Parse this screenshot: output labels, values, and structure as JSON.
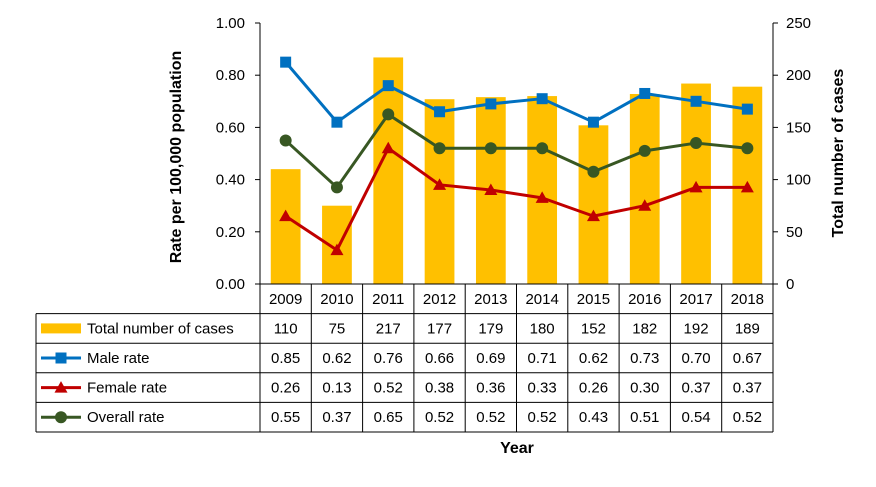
{
  "chart_data": {
    "type": "bar",
    "categories": [
      "2009",
      "2010",
      "2011",
      "2012",
      "2013",
      "2014",
      "2015",
      "2016",
      "2017",
      "2018"
    ],
    "series": [
      {
        "name": "Total number of cases",
        "kind": "bar",
        "axis": "right",
        "color": "#FFC000",
        "values": [
          110,
          75,
          217,
          177,
          179,
          180,
          152,
          182,
          192,
          189
        ],
        "labels": [
          "110",
          "75",
          "217",
          "177",
          "179",
          "180",
          "152",
          "182",
          "192",
          "189"
        ]
      },
      {
        "name": "Male rate",
        "kind": "line",
        "axis": "left",
        "color": "#0070C0",
        "marker": "square",
        "values": [
          0.85,
          0.62,
          0.76,
          0.66,
          0.69,
          0.71,
          0.62,
          0.73,
          0.7,
          0.67
        ],
        "labels": [
          "0.85",
          "0.62",
          "0.76",
          "0.66",
          "0.69",
          "0.71",
          "0.62",
          "0.73",
          "0.70",
          "0.67"
        ]
      },
      {
        "name": "Female rate",
        "kind": "line",
        "axis": "left",
        "color": "#C00000",
        "marker": "triangle",
        "values": [
          0.26,
          0.13,
          0.52,
          0.38,
          0.36,
          0.33,
          0.26,
          0.3,
          0.37,
          0.37
        ],
        "labels": [
          "0.26",
          "0.13",
          "0.52",
          "0.38",
          "0.36",
          "0.33",
          "0.26",
          "0.30",
          "0.37",
          "0.37"
        ]
      },
      {
        "name": "Overall rate",
        "kind": "line",
        "axis": "left",
        "color": "#385723",
        "marker": "circle",
        "values": [
          0.55,
          0.37,
          0.65,
          0.52,
          0.52,
          0.52,
          0.43,
          0.51,
          0.54,
          0.52
        ],
        "labels": [
          "0.55",
          "0.37",
          "0.65",
          "0.52",
          "0.52",
          "0.52",
          "0.43",
          "0.51",
          "0.54",
          "0.52"
        ]
      }
    ],
    "xlabel": "Year",
    "ylabel": "Rate per 100,000 population",
    "y2label": "Total number of cases",
    "ylim": [
      0,
      1.0
    ],
    "y2lim": [
      0,
      250
    ],
    "yticks": [
      "0.00",
      "0.20",
      "0.40",
      "0.60",
      "0.80",
      "1.00"
    ],
    "y2ticks": [
      "0",
      "50",
      "100",
      "150",
      "200",
      "250"
    ],
    "grid": false,
    "legend": "data table"
  }
}
